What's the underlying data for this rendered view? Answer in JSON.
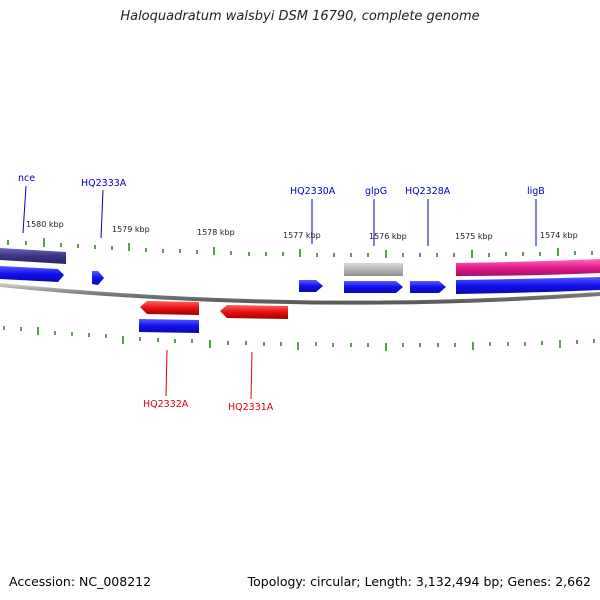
{
  "title": "Haloquadratum walsbyi DSM 16790, complete genome",
  "footer": {
    "accession": "Accession: NC_008212",
    "summary": "Topology: circular; Length: 3,132,494 bp; Genes: 2,662"
  },
  "colors": {
    "backbone": "#808080",
    "tick": "#2b8a1e",
    "forward_cds": "#1a1aee",
    "reverse_cds": "#e01010",
    "rna": "#3b3484",
    "misc_gray": "#b5b5b5",
    "misc_pink": "#e21c8c",
    "label_forward": "#0000c0",
    "label_reverse": "#dd0000"
  },
  "ticks": [
    {
      "label": "1580 kbp"
    },
    {
      "label": "1579 kbp"
    },
    {
      "label": "1578 kbp"
    },
    {
      "label": "1577 kbp"
    },
    {
      "label": "1576 kbp"
    },
    {
      "label": "1575 kbp"
    },
    {
      "label": "1574 kbp"
    }
  ],
  "gene_labels": [
    {
      "text": "nce",
      "strand": "forward"
    },
    {
      "text": "HQ2333A",
      "strand": "forward"
    },
    {
      "text": "HQ2330A",
      "strand": "forward"
    },
    {
      "text": "glpG",
      "strand": "forward"
    },
    {
      "text": "HQ2328A",
      "strand": "forward"
    },
    {
      "text": "ligB",
      "strand": "forward"
    },
    {
      "text": "HQ2332A",
      "strand": "reverse"
    },
    {
      "text": "HQ2331A",
      "strand": "reverse"
    }
  ]
}
